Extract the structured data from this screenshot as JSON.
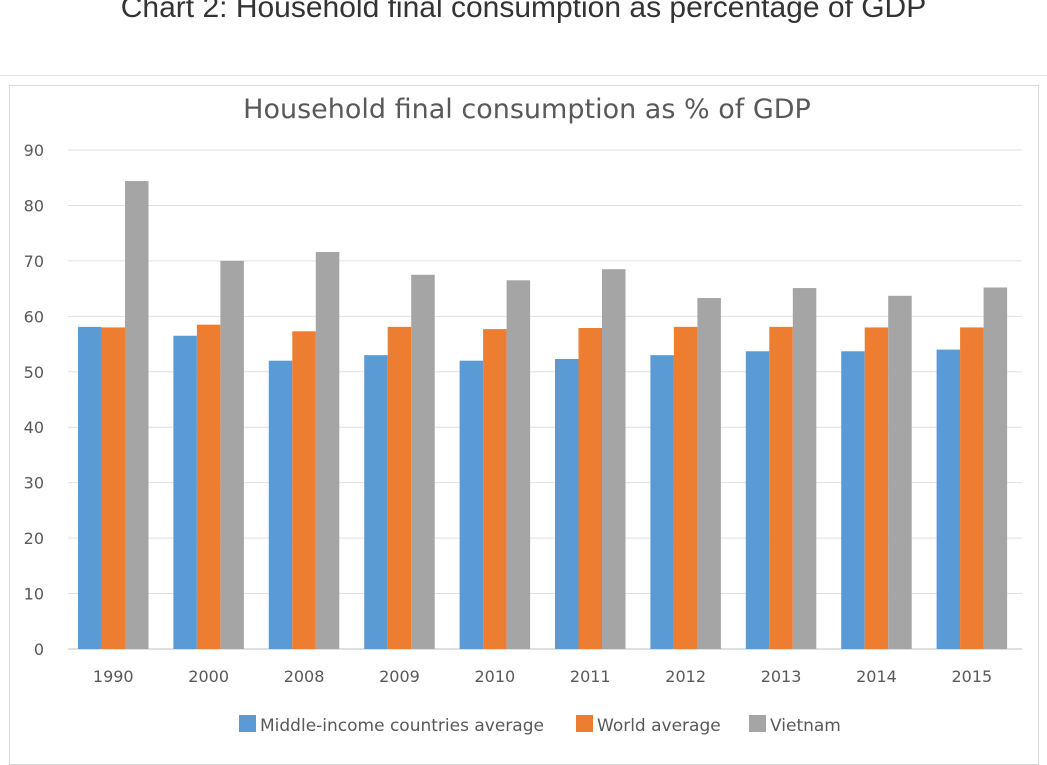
{
  "page": {
    "heading": "Chart 2: Household final consumption as percentage of GDP"
  },
  "chart_data": {
    "type": "bar",
    "title": "Household final consumption as % of GDP",
    "xlabel": "",
    "ylabel": "",
    "ylim": [
      0,
      90
    ],
    "yticks": [
      0,
      10,
      20,
      30,
      40,
      50,
      60,
      70,
      80,
      90
    ],
    "grid": true,
    "legend_position": "bottom",
    "categories": [
      "1990",
      "2000",
      "2008",
      "2009",
      "2010",
      "2011",
      "2012",
      "2013",
      "2014",
      "2015"
    ],
    "series": [
      {
        "name": "Middle-income countries average",
        "color": "#5b9bd5",
        "values": [
          58.1,
          56.5,
          52.0,
          53.0,
          52.0,
          52.3,
          53.0,
          53.7,
          53.7,
          54.0
        ]
      },
      {
        "name": "World average",
        "color": "#ed7d31",
        "values": [
          58.0,
          58.5,
          57.3,
          58.1,
          57.7,
          57.9,
          58.1,
          58.1,
          58.0,
          58.0
        ]
      },
      {
        "name": "Vietnam",
        "color": "#a5a5a5",
        "values": [
          84.4,
          70.0,
          71.6,
          67.5,
          66.5,
          68.5,
          63.3,
          65.1,
          63.7,
          65.2
        ]
      }
    ]
  }
}
